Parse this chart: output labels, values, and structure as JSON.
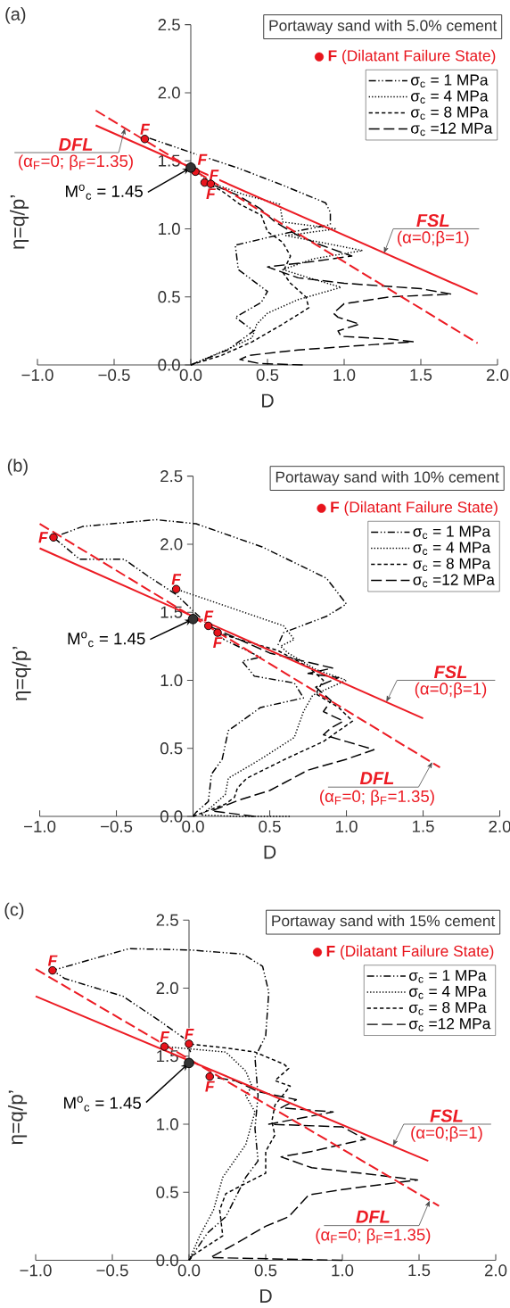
{
  "chart_data": [
    {
      "type": "line",
      "title": "Portaway sand with 5.0% cement",
      "xlabel": "D",
      "ylabel": "η=q/p’",
      "xlim": [
        -1,
        2
      ],
      "ylim": [
        0,
        2.5
      ],
      "xticks": [
        {
          "value": -1,
          "label": "−1.0"
        },
        {
          "value": -0.5,
          "label": "−0.5"
        },
        {
          "value": 0,
          "label": "0.0"
        },
        {
          "value": 0.5,
          "label": "0.5"
        },
        {
          "value": 1,
          "label": "1.0"
        },
        {
          "value": 1.5,
          "label": "1.5"
        },
        {
          "value": 2,
          "label": "2.0"
        }
      ],
      "yticks": [
        {
          "value": 0,
          "label": "0.0"
        },
        {
          "value": 0.5,
          "label": "0.5"
        },
        {
          "value": 1,
          "label": "1.0"
        },
        {
          "value": 1.5,
          "label": "1.5"
        },
        {
          "value": 2,
          "label": "2.0"
        },
        {
          "value": 2.5,
          "label": "2.5"
        }
      ],
      "legend": "top right",
      "annotations": [
        "(a)",
        {
          "text": "(α$_{F}$=0; β$_{F}$=1.35)",
          "x": -0.43,
          "y": 1.74
        },
        {
          "text": "(α=0;β=1)",
          "x": 1.26,
          "y": 0.82
        },
        {
          "text": "M$^{o}$$_{c}$ = 1.45",
          "x": 0,
          "y": 1.45
        },
        {
          "text": "F",
          "x": -0.3,
          "y": 1.66
        },
        {
          "text": "F",
          "x": 0.03,
          "y": 1.42
        },
        {
          "text": "F",
          "x": 0.09,
          "y": 1.34
        },
        {
          "text": "F",
          "x": 0.13,
          "y": 1.33
        }
      ],
      "series": [
        {
          "name": "σ$_{c}$ = 1 MPa",
          "color": "#000000",
          "line_style": "dashdotdot",
          "x": [
            0,
            0.24,
            0.41,
            0.29,
            0.46,
            0.5,
            0.31,
            0.29,
            0.63,
            0.91,
            0.91,
            0.88,
            0.6,
            0.3,
            0.03,
            -0.28
          ],
          "values": [
            0,
            0.11,
            0.25,
            0.35,
            0.46,
            0.54,
            0.7,
            0.88,
            0.97,
            1.03,
            1.12,
            1.19,
            1.32,
            1.45,
            1.55,
            1.67
          ]
        },
        {
          "name": "σ$_{c}$ = 4 MPa",
          "color": "#000000",
          "line_style": "dotted",
          "x": [
            0,
            0.25,
            0.4,
            0.43,
            0.5,
            0.7,
            0.98,
            0.8,
            0.6,
            0.8,
            1.12,
            0.85,
            0.62,
            0.95,
            0.6,
            0.58,
            0.35,
            0.15,
            0.03
          ],
          "values": [
            0,
            0.12,
            0.2,
            0.3,
            0.38,
            0.48,
            0.57,
            0.63,
            0.7,
            0.78,
            0.84,
            0.9,
            0.95,
            1.0,
            1.05,
            1.18,
            1.25,
            1.33,
            1.42
          ]
        },
        {
          "name": "σ$_{c}$ = 8 MPa",
          "color": "#000000",
          "line_style": "dashed",
          "x": [
            0,
            0.2,
            0.4,
            0.6,
            0.77,
            0.75,
            0.65,
            0.6,
            0.65,
            0.6,
            0.5,
            0.46,
            0.32,
            0.2,
            0.09
          ],
          "values": [
            0,
            0.07,
            0.17,
            0.3,
            0.42,
            0.5,
            0.6,
            0.68,
            0.8,
            0.9,
            0.98,
            1.1,
            1.18,
            1.28,
            1.34
          ]
        },
        {
          "name": "σ$_{c}$ =12 MPa",
          "color": "#000000",
          "line_style": "longdash",
          "x": [
            0.73,
            0.45,
            0.32,
            0.38,
            0.7,
            1.2,
            1.45,
            1.3,
            0.98,
            0.96,
            1.1,
            0.96,
            0.93,
            1.0,
            1.3,
            1.7,
            1.5,
            1.0,
            0.7,
            0.5,
            0.8,
            1.05,
            0.85,
            0.7,
            0.55,
            0.45,
            0.3,
            0.13
          ],
          "values": [
            0,
            0.01,
            0.04,
            0.07,
            0.11,
            0.15,
            0.17,
            0.19,
            0.21,
            0.25,
            0.3,
            0.35,
            0.38,
            0.45,
            0.5,
            0.52,
            0.56,
            0.6,
            0.64,
            0.72,
            0.76,
            0.8,
            0.88,
            0.95,
            1.05,
            1.15,
            1.25,
            1.33
          ]
        },
        {
          "name": "**F** (Dilatant Failure State)",
          "type": "scatter",
          "marker": "circle",
          "color": "#e8141c",
          "x": [
            -0.3,
            0.03,
            0.09,
            0.13
          ],
          "values": [
            1.66,
            1.42,
            1.34,
            1.33
          ]
        },
        {
          "type": "scatter",
          "marker": "circle",
          "color": "#333333",
          "x": [
            0
          ],
          "values": [
            1.45
          ]
        },
        {
          "name": "DFL",
          "type": "line",
          "color": "#ec1c24",
          "line_style": "longdash",
          "x": [
            -0.62,
            1.87
          ],
          "values": [
            1.87,
            0.16
          ]
        },
        {
          "name": "FSL",
          "type": "line",
          "color": "#ec1c24",
          "line_style": "solid",
          "x": [
            -0.62,
            1.87
          ],
          "values": [
            1.76,
            0.52
          ]
        }
      ]
    },
    {
      "type": "line",
      "title": "Portaway sand with 10% cement",
      "xlabel": "D",
      "ylabel": "η=q/p’",
      "xlim": [
        -1,
        2
      ],
      "ylim": [
        0,
        2.5
      ],
      "xticks": [
        {
          "value": -1,
          "label": "−1.0"
        },
        {
          "value": -0.5,
          "label": "−0.5"
        },
        {
          "value": 0,
          "label": "0.0"
        },
        {
          "value": 0.5,
          "label": "0.5"
        },
        {
          "value": 1,
          "label": "1.0"
        },
        {
          "value": 1.5,
          "label": "1.5"
        },
        {
          "value": 2,
          "label": "2.0"
        }
      ],
      "yticks": [
        {
          "value": 0,
          "label": "0.0"
        },
        {
          "value": 0.5,
          "label": "0.5"
        },
        {
          "value": 1,
          "label": "1.0"
        },
        {
          "value": 1.5,
          "label": "1.5"
        },
        {
          "value": 2,
          "label": "2.0"
        },
        {
          "value": 2.5,
          "label": "2.5"
        }
      ],
      "legend": "top right",
      "annotations": [
        "(b)",
        {
          "text": "(α$_{F}$=0; β$_{F}$=1.35)",
          "x": 1.56,
          "y": 0.4
        },
        {
          "text": "(α=0;β=1)",
          "x": 1.26,
          "y": 0.84
        },
        {
          "text": "M$^{o}$$_{c}$ = 1.45",
          "x": 0,
          "y": 1.45
        },
        {
          "text": "F",
          "x": -0.91,
          "y": 2.05
        },
        {
          "text": "F",
          "x": -0.11,
          "y": 1.67
        },
        {
          "text": "F",
          "x": 0.1,
          "y": 1.4
        },
        {
          "text": "F",
          "x": 0.16,
          "y": 1.35
        }
      ],
      "series": [
        {
          "name": "σ$_{c}$ = 1 MPa",
          "color": "#000000",
          "line_style": "dashdotdot",
          "x": [
            0,
            0.02,
            0.1,
            0.12,
            0.19,
            0.23,
            0.44,
            0.72,
            0.66,
            0.4,
            0.32,
            0.44,
            0.2,
            0.02,
            -0.11,
            -0.3,
            -0.45,
            -0.74,
            -0.91,
            -0.72,
            -0.24,
            0.02,
            0.45,
            0.87,
            1.0,
            0.87,
            0.59,
            0.55
          ],
          "values": [
            0,
            0.03,
            0.11,
            0.31,
            0.42,
            0.63,
            0.8,
            0.87,
            0.98,
            1.03,
            1.14,
            1.17,
            1.3,
            1.49,
            1.63,
            1.77,
            1.89,
            1.89,
            2.05,
            2.13,
            2.18,
            2.15,
            1.98,
            1.75,
            1.56,
            1.47,
            1.35,
            1.25
          ]
        },
        {
          "name": "σ$_{c}$ = 4 MPa",
          "color": "#000000",
          "line_style": "dotted",
          "x": [
            0.63,
            0.3,
            0.05,
            0.12,
            0.21,
            0.23,
            0.44,
            0.66,
            0.72,
            0.78,
            1.0,
            0.8,
            0.62,
            0.57,
            0.66,
            0.59,
            0.02,
            -0.11
          ],
          "values": [
            0,
            0,
            0.01,
            0.07,
            0.16,
            0.28,
            0.42,
            0.58,
            0.77,
            0.89,
            1.0,
            1.08,
            1.2,
            1.25,
            1.3,
            1.4,
            1.62,
            1.67
          ]
        },
        {
          "name": "σ$_{c}$ = 8 MPa",
          "color": "#000000",
          "line_style": "dashed",
          "x": [
            0,
            0.21,
            0.27,
            0.29,
            0.35,
            0.6,
            0.85,
            1.04,
            0.95,
            0.8,
            0.85,
            0.75,
            0.55,
            0.3,
            0.16
          ],
          "values": [
            0,
            0.09,
            0.14,
            0.21,
            0.28,
            0.42,
            0.55,
            0.7,
            0.8,
            0.9,
            1.0,
            1.1,
            1.22,
            1.3,
            1.35
          ]
        },
        {
          "name": "σ$_{c}$ =12 MPa",
          "color": "#000000",
          "line_style": "longdash",
          "x": [
            0.4,
            0.12,
            0.3,
            0.5,
            0.75,
            1.0,
            1.18,
            1.0,
            0.85,
            0.9,
            0.98,
            0.85,
            0.9,
            0.8,
            0.95,
            0.75,
            0.91,
            0.5,
            0.3,
            0.1
          ],
          "values": [
            0,
            0.04,
            0.12,
            0.19,
            0.34,
            0.42,
            0.49,
            0.55,
            0.6,
            0.65,
            0.7,
            0.77,
            0.85,
            0.95,
            1.02,
            1.05,
            1.09,
            1.2,
            1.3,
            1.4
          ]
        },
        {
          "name": "**F** (Dilatant Failure State)",
          "type": "scatter",
          "marker": "circle",
          "color": "#e8141c",
          "x": [
            -0.91,
            -0.11,
            0.1,
            0.16
          ],
          "values": [
            2.05,
            1.67,
            1.4,
            1.35
          ]
        },
        {
          "type": "scatter",
          "marker": "circle",
          "color": "#333333",
          "x": [
            0
          ],
          "values": [
            1.45
          ]
        },
        {
          "name": "DFL",
          "type": "line",
          "color": "#ec1c24",
          "line_style": "longdash",
          "x": [
            -1.0,
            1.61
          ],
          "values": [
            2.15,
            0.36
          ]
        },
        {
          "name": "FSL",
          "type": "line",
          "color": "#ec1c24",
          "line_style": "solid",
          "x": [
            -1.0,
            1.5
          ],
          "values": [
            1.97,
            0.72
          ]
        }
      ]
    },
    {
      "type": "line",
      "title": "Portaway sand with 15% cement",
      "xlabel": "D",
      "ylabel": "η=q/p’",
      "xlim": [
        -1,
        2
      ],
      "ylim": [
        0,
        2.5
      ],
      "xticks": [
        {
          "value": -1,
          "label": "−1.0"
        },
        {
          "value": -0.5,
          "label": "−0.5"
        },
        {
          "value": 0,
          "label": "0.0"
        },
        {
          "value": 0.5,
          "label": "0.5"
        },
        {
          "value": 1,
          "label": "1.0"
        },
        {
          "value": 1.5,
          "label": "1.5"
        },
        {
          "value": 2,
          "label": "2.0"
        }
      ],
      "yticks": [
        {
          "value": 0,
          "label": "0.0"
        },
        {
          "value": 0.5,
          "label": "0.5"
        },
        {
          "value": 1,
          "label": "1.0"
        },
        {
          "value": 1.5,
          "label": "1.5"
        },
        {
          "value": 2,
          "label": "2.0"
        },
        {
          "value": 2.5,
          "label": "2.5"
        }
      ],
      "legend": "top right",
      "annotations": [
        "(c)",
        {
          "text": "(α$_{F}$=0; β$_{F}$=1.35)",
          "x": 1.57,
          "y": 0.44
        },
        {
          "text": "(α=0;β=1)",
          "x": 1.33,
          "y": 0.84
        },
        {
          "text": "M$^{o}$$_{c}$ = 1.45",
          "x": 0,
          "y": 1.45
        },
        {
          "text": "F",
          "x": -0.89,
          "y": 2.13
        },
        {
          "text": "F",
          "x": -0.16,
          "y": 1.57
        },
        {
          "text": "F",
          "x": 0.0,
          "y": 1.59
        },
        {
          "text": "F",
          "x": 0.135,
          "y": 1.35
        }
      ],
      "series": [
        {
          "name": "σ$_{c}$ = 1 MPa",
          "color": "#000000",
          "line_style": "dashdotdot",
          "x": [
            0,
            0.12,
            0.24,
            0.37,
            0.45,
            0.43,
            0.45,
            0.43,
            0.5,
            0.52,
            0.48,
            0.35,
            0.01,
            -0.39,
            -0.89,
            -0.81,
            -0.43,
            -0.18,
            -0.03,
            0.01
          ],
          "values": [
            0,
            0.2,
            0.32,
            0.61,
            0.73,
            0.97,
            1.21,
            1.49,
            1.65,
            1.97,
            2.16,
            2.25,
            2.28,
            2.29,
            2.13,
            2.07,
            1.94,
            1.75,
            1.63,
            1.53
          ]
        },
        {
          "name": "σ$_{c}$ = 4 MPa",
          "color": "#000000",
          "line_style": "dotted",
          "x": [
            0,
            0.07,
            0.16,
            0.22,
            0.37,
            0.43,
            0.37,
            0.41,
            0.37,
            0.24,
            -0.16
          ],
          "values": [
            0,
            0.18,
            0.37,
            0.61,
            0.85,
            1.09,
            1.21,
            1.28,
            1.39,
            1.53,
            1.57
          ]
        },
        {
          "name": "σ$_{c}$ = 8 MPa",
          "color": "#000000",
          "line_style": "dashed",
          "x": [
            0,
            0.03,
            0.22,
            0.2,
            0.24,
            0.5,
            0.5,
            0.56,
            0.54,
            0.56,
            0.66,
            0.56,
            0.65,
            0.62,
            0.43,
            0.24,
            0.0
          ],
          "values": [
            0,
            0.04,
            0.18,
            0.37,
            0.49,
            0.64,
            0.8,
            0.92,
            1.02,
            1.14,
            1.28,
            1.32,
            1.41,
            1.44,
            1.53,
            1.56,
            1.59
          ]
        },
        {
          "name": "σ$_{c}$ =12 MPa",
          "color": "#000000",
          "line_style": "longdash",
          "x": [
            1.0,
            0.14,
            0.3,
            0.5,
            0.65,
            0.78,
            1.0,
            1.49,
            1.2,
            0.8,
            0.6,
            0.8,
            1.15,
            1.0,
            0.52,
            0.94,
            0.6,
            0.7,
            0.45,
            0.3,
            0.135
          ],
          "values": [
            0,
            0.02,
            0.12,
            0.25,
            0.32,
            0.48,
            0.52,
            0.59,
            0.63,
            0.68,
            0.76,
            0.8,
            0.89,
            0.98,
            1.0,
            1.09,
            1.12,
            1.18,
            1.24,
            1.32,
            1.35
          ]
        },
        {
          "name": "**F** (Dilatant Failure State)",
          "type": "scatter",
          "marker": "circle",
          "color": "#e8141c",
          "x": [
            -0.89,
            -0.16,
            0.0,
            0.135
          ],
          "values": [
            2.13,
            1.57,
            1.59,
            1.35
          ]
        },
        {
          "type": "scatter",
          "marker": "circle",
          "color": "#333333",
          "x": [
            0
          ],
          "values": [
            1.45
          ]
        },
        {
          "name": "DFL",
          "type": "line",
          "color": "#ec1c24",
          "line_style": "longdash",
          "x": [
            -1.0,
            1.63
          ],
          "values": [
            2.14,
            0.4
          ]
        },
        {
          "name": "FSL",
          "type": "line",
          "color": "#ec1c24",
          "line_style": "solid",
          "x": [
            -1.0,
            1.56
          ],
          "values": [
            1.94,
            0.73
          ]
        }
      ]
    }
  ]
}
